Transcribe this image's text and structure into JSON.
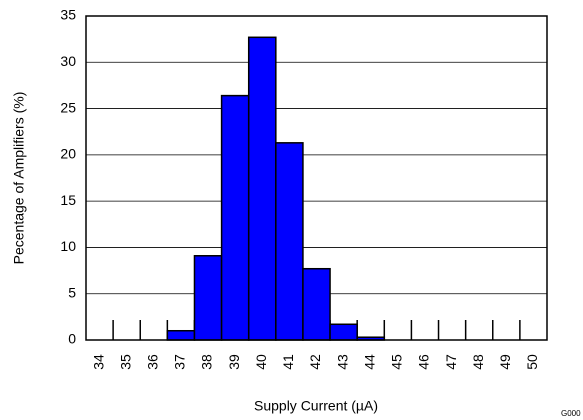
{
  "chart_data": {
    "type": "bar",
    "ylabel": "Pecentage of Amplifiers (%)",
    "xlabel": "Supply Current (µA)",
    "footnote": "G000",
    "categories": [
      "34",
      "35",
      "36",
      "37",
      "38",
      "39",
      "40",
      "41",
      "42",
      "43",
      "44",
      "45",
      "46",
      "47",
      "48",
      "49",
      "50"
    ],
    "values": [
      0,
      0,
      0,
      1.0,
      9.1,
      26.4,
      32.7,
      21.3,
      7.7,
      1.7,
      0.3,
      0,
      0,
      0,
      0,
      0,
      0
    ],
    "color": "#0000ff",
    "ylim": [
      0,
      35
    ],
    "yticks": [
      0,
      5,
      10,
      15,
      20,
      25,
      30,
      35
    ],
    "grid": true
  }
}
